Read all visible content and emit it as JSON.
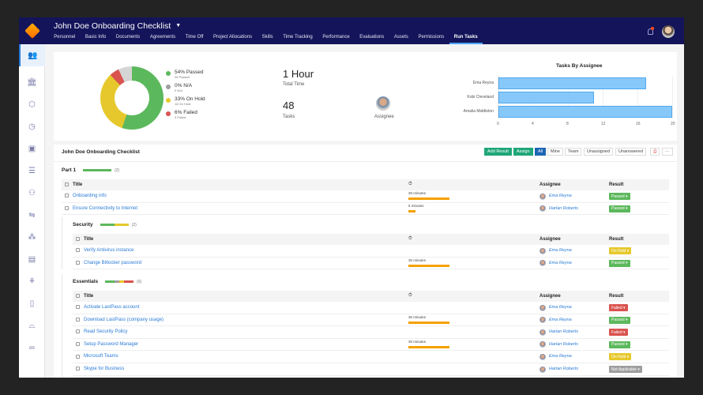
{
  "header": {
    "title": "John Doe Onboarding Checklist",
    "nav": [
      "Personnel",
      "Basic Info",
      "Documents",
      "Agreements",
      "Time Off",
      "Project Allocations",
      "Skills",
      "Time Tracking",
      "Performance",
      "Evaluations",
      "Assets",
      "Permissions",
      "Run Tasks"
    ],
    "active_nav": "Run Tasks"
  },
  "sidebar": {
    "items": [
      {
        "icon": "people-icon",
        "glyph": "👥"
      },
      {
        "icon": "bank-icon",
        "glyph": "🏛"
      },
      {
        "icon": "layers-icon",
        "glyph": "⬡"
      },
      {
        "icon": "clock-icon",
        "glyph": "◷"
      },
      {
        "icon": "calendar-icon",
        "glyph": "▣"
      },
      {
        "icon": "list-icon",
        "glyph": "☰"
      },
      {
        "icon": "group-icon",
        "glyph": "⚇"
      },
      {
        "icon": "handshake-icon",
        "glyph": "⇋"
      },
      {
        "icon": "org-icon",
        "glyph": "⁂"
      },
      {
        "icon": "form-icon",
        "glyph": "▤"
      },
      {
        "icon": "plant-icon",
        "glyph": "⚘"
      },
      {
        "icon": "door-icon",
        "glyph": "▯"
      },
      {
        "icon": "car-icon",
        "glyph": "⌓"
      },
      {
        "icon": "binoculars-icon",
        "glyph": "∞"
      }
    ]
  },
  "summary": {
    "legend": [
      {
        "label": "54% Passed",
        "sub": "26 Passed",
        "color": "#5cb85c"
      },
      {
        "label": "0% N/A",
        "sub": "0 N/A",
        "color": "#9e9e9e"
      },
      {
        "label": "33% On Hold",
        "sub": "16 On Hold",
        "color": "#e6c82c"
      },
      {
        "label": "6% Failed",
        "sub": "3 Failed",
        "color": "#d9534f"
      }
    ],
    "total_time": "1 Hour",
    "total_time_label": "Total Time",
    "tasks": "48",
    "tasks_label": "Tasks",
    "assignee_label": "Assignee"
  },
  "chart_data": {
    "type": "bar",
    "orientation": "horizontal",
    "title": "Tasks By Assignee",
    "categories": [
      "Ema Reyna",
      "Kobi Cleveland",
      "Amalia Middleton"
    ],
    "values": [
      17,
      11,
      20
    ],
    "xticks": [
      "0",
      "4",
      "8",
      "12",
      "16",
      "20"
    ],
    "xlim": [
      0,
      20
    ],
    "color": "#87c8fb"
  },
  "checklist": {
    "title": "John Doe Onboarding Checklist",
    "toolbar": {
      "add_result": "Add Result",
      "assign": "Assign",
      "filters": [
        "All",
        "Mine",
        "Team",
        "Unassigned",
        "Unanswered"
      ],
      "active_filter": "All"
    },
    "columns": {
      "title": "Title",
      "time_icon": "⏱",
      "assignee": "Assignee",
      "result": "Result"
    },
    "sections": [
      {
        "name": "Part 1",
        "count": "(2)",
        "rows": [
          {
            "title": "Onboarding info",
            "time": "30 minutes",
            "assignee": "Ema Reyna",
            "result": "Passed ▾"
          },
          {
            "title": "Ensure Connectivity to Internet",
            "time": "5 minutes",
            "assignee": "Harlan Roberts",
            "result": "Passed ▾"
          }
        ]
      },
      {
        "name": "Security",
        "count": "(2)",
        "rows": [
          {
            "title": "Verify Antivirus instance",
            "time": "",
            "assignee": "Ema Reyna",
            "result": "On Hold ▾"
          },
          {
            "title": "Change Bitlocker password",
            "time": "30 minutes",
            "assignee": "Ema Reyna",
            "result": "Passed ▾"
          }
        ]
      },
      {
        "name": "Essentials",
        "count": "(6)",
        "rows": [
          {
            "title": "Activate LastPass account",
            "time": "",
            "assignee": "Ema Reyna",
            "result": "Failed ▾"
          },
          {
            "title": "Download LastPass (company usage)",
            "time": "30 minutes",
            "assignee": "Ema Reyna",
            "result": "Passed ▾"
          },
          {
            "title": "Read Security Policy",
            "time": "",
            "assignee": "Harlan Roberts",
            "result": "Failed ▾"
          },
          {
            "title": "Setup Password Manager",
            "time": "30 minutes",
            "assignee": "Harlan Roberts",
            "result": "Passed ▾"
          },
          {
            "title": "Microsoft Teams",
            "time": "",
            "assignee": "Ema Reyna",
            "result": "On Hold ▾"
          },
          {
            "title": "Skype for Business",
            "time": "",
            "assignee": "Harlan Roberts",
            "result": "Not Applicable ▾"
          }
        ]
      }
    ]
  },
  "colors": {
    "passed": "#5cb85c",
    "on_hold": "#e6c82c",
    "failed": "#d9534f",
    "na": "#9e9e9e",
    "link": "#2a7bd6",
    "header": "#14145a",
    "accent": "#1fa67a"
  }
}
